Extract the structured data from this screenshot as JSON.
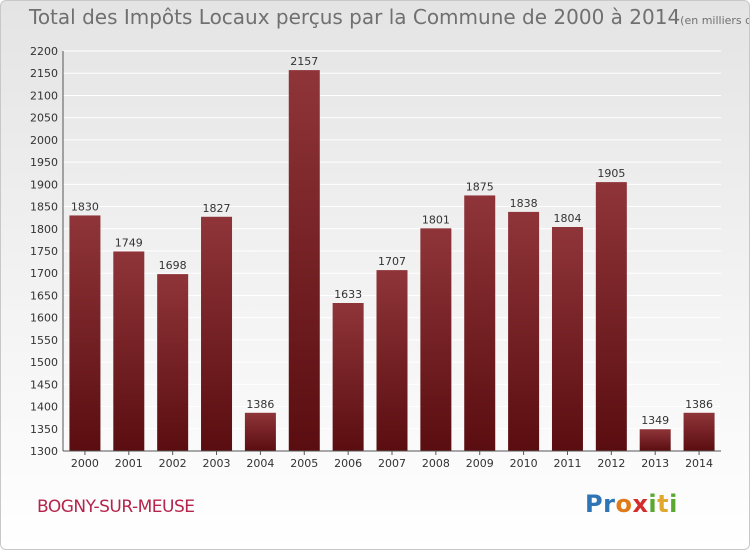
{
  "title": "Total des Impôts Locaux perçus par la Commune de 2000 à 2014",
  "unit_note": "(en milliers d'€)",
  "commune": "BOGNY-SUR-MEUSE",
  "logo": {
    "letters": [
      "P",
      "r",
      "o",
      "x",
      "i",
      "t",
      "i"
    ],
    "colors": [
      "#2f74b5",
      "#2f74b5",
      "#e07b1a",
      "#d62b2b",
      "#5aa832",
      "#e0a82e",
      "#5aa832"
    ]
  },
  "colors": {
    "bar": "#7a1f24",
    "bar_top": "#8e3236",
    "grid": "#ffffff",
    "title": "#707070",
    "commune": "#b5244b"
  },
  "chart_data": {
    "type": "bar",
    "title": "Total des Impôts Locaux perçus par la Commune de 2000 à 2014",
    "ylabel": "en milliers d'€",
    "categories": [
      "2000",
      "2001",
      "2002",
      "2003",
      "2004",
      "2005",
      "2006",
      "2007",
      "2008",
      "2009",
      "2010",
      "2011",
      "2012",
      "2013",
      "2014"
    ],
    "values": [
      1830,
      1749,
      1698,
      1827,
      1386,
      2157,
      1633,
      1707,
      1801,
      1875,
      1838,
      1804,
      1905,
      1349,
      1386
    ],
    "ylim": [
      1300,
      2200
    ],
    "yticks": [
      1300,
      1350,
      1400,
      1450,
      1500,
      1550,
      1600,
      1650,
      1700,
      1750,
      1800,
      1850,
      1900,
      1950,
      2000,
      2050,
      2100,
      2150,
      2200
    ],
    "grid": true
  }
}
